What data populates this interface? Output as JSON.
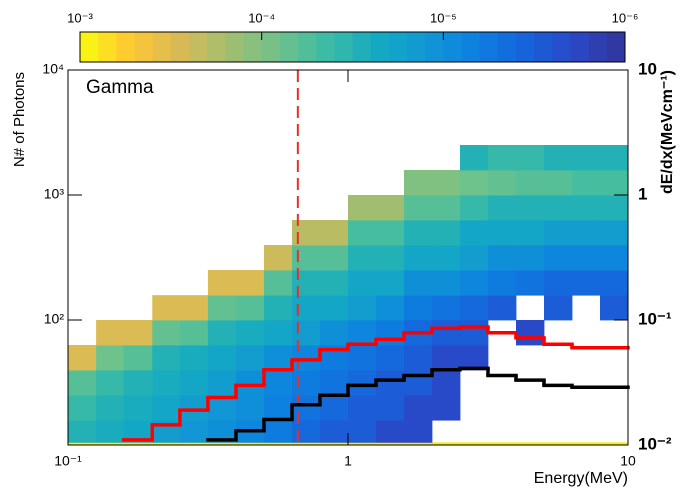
{
  "chart_data": {
    "type": "heatmap",
    "annotation": "Gamma",
    "x_label": "Energy(MeV)",
    "y_label": "N# of Photons",
    "y2_label": "dE/dx(MeVcm⁻¹)",
    "log_x": true,
    "log_y": true,
    "log_y2": true,
    "log_z": true,
    "xlim": [
      0.1,
      10
    ],
    "xticks": [
      {
        "value": 0.1,
        "label": "10⁻¹"
      },
      1,
      10
    ],
    "ylim": [
      10,
      10000
    ],
    "yticks": [
      {
        "value": 10000,
        "label": "10⁴"
      },
      {
        "value": 1000,
        "label": "10³"
      },
      {
        "value": 100,
        "label": "10²"
      }
    ],
    "y2lim": [
      0.01,
      10
    ],
    "y2ticks": [
      10,
      1,
      {
        "value": 0.1,
        "label": "10⁻¹"
      },
      {
        "value": 0.01,
        "label": "10⁻²"
      }
    ],
    "zlim": [
      0.001,
      1e-06
    ],
    "zticks": [
      {
        "value": 0.001,
        "label": "10⁻³"
      },
      {
        "value": 0.0001,
        "label": "10⁻⁴"
      },
      {
        "value": 1e-05,
        "label": "10⁻⁵"
      },
      {
        "value": 1e-06,
        "label": "10⁻⁶"
      }
    ],
    "palette": [
      "#f9fb0e",
      "#fec832",
      "#d8ba56",
      "#a2be6f",
      "#6fc28b",
      "#3bbba5",
      "#14aac2",
      "#1297d5",
      "#0d7fe0",
      "#1763db",
      "#2b47c6",
      "#33359a"
    ],
    "x_bins": [
      0.1,
      0.126,
      0.158,
      0.2,
      0.251,
      0.316,
      0.398,
      0.501,
      0.631,
      0.794,
      1,
      1.259,
      1.585,
      1.995,
      2.512,
      3.162,
      3.981,
      5.012,
      6.31,
      7.943,
      10
    ],
    "y_bins": [
      10,
      10.5,
      15.8,
      25.1,
      39.8,
      63.1,
      100,
      158,
      251,
      398,
      631,
      1000,
      1585,
      2512,
      3981,
      6310,
      10000
    ],
    "z": [
      [
        0.0008,
        0.0008,
        0.0008,
        0.0008,
        0.0008,
        0.0008,
        0.0008,
        0.0008,
        0.0008,
        0.0008,
        0.0008,
        0.0008,
        0.0008,
        0.0008,
        0.0008,
        0.0008,
        0.0008,
        0.0008,
        0.0008,
        0.0008
      ],
      [
        3e-05,
        2.5e-05,
        2e-05,
        1.5e-05,
        1.2e-05,
        1e-05,
        8e-06,
        6e-06,
        4e-06,
        3e-06,
        3e-06,
        2e-06,
        2e-06,
        null,
        null,
        null,
        null,
        null,
        null,
        null
      ],
      [
        4e-05,
        3e-05,
        2.5e-05,
        2e-05,
        1.5e-05,
        1.2e-05,
        1e-05,
        7e-06,
        5e-06,
        4e-06,
        3e-06,
        3e-06,
        2e-06,
        2e-06,
        null,
        null,
        null,
        null,
        null,
        null
      ],
      [
        6e-05,
        4e-05,
        3e-05,
        2.5e-05,
        2e-05,
        1.5e-05,
        1e-05,
        8e-06,
        6e-06,
        5e-06,
        4e-06,
        3e-06,
        3e-06,
        2e-06,
        null,
        null,
        null,
        null,
        null,
        null
      ],
      [
        0.0003,
        8e-05,
        6e-05,
        3e-05,
        2.5e-05,
        2e-05,
        1.5e-05,
        1e-05,
        8e-06,
        6e-06,
        5e-06,
        4e-06,
        3e-06,
        2e-06,
        2e-06,
        null,
        null,
        null,
        null,
        null
      ],
      [
        null,
        0.0003,
        0.0003,
        7e-05,
        6e-05,
        3e-05,
        2.5e-05,
        2e-05,
        1.5e-05,
        1e-05,
        8e-06,
        6e-06,
        4e-06,
        3e-06,
        3e-06,
        null,
        2e-06,
        null,
        null,
        null
      ],
      [
        null,
        null,
        null,
        0.0003,
        0.0003,
        7e-05,
        6e-05,
        3e-05,
        2e-05,
        2e-05,
        1.5e-05,
        1e-05,
        6e-06,
        5e-06,
        4e-06,
        3e-06,
        null,
        3e-06,
        null,
        3e-06
      ],
      [
        null,
        null,
        null,
        null,
        null,
        0.0003,
        0.0003,
        6e-05,
        3e-05,
        3e-05,
        2e-05,
        2e-05,
        1e-05,
        1e-05,
        8e-06,
        6e-06,
        5e-06,
        4e-06,
        4e-06,
        4e-06
      ],
      [
        null,
        null,
        null,
        null,
        null,
        null,
        null,
        0.00025,
        6e-05,
        6e-05,
        3e-05,
        3e-05,
        2e-05,
        2e-05,
        1.5e-05,
        1e-05,
        1e-05,
        8e-06,
        8e-06,
        8e-06
      ],
      [
        null,
        null,
        null,
        null,
        null,
        null,
        null,
        null,
        0.0002,
        0.0002,
        5e-05,
        5e-05,
        3e-05,
        3e-05,
        2e-05,
        2e-05,
        2e-05,
        1.5e-05,
        1.5e-05,
        1.5e-05
      ],
      [
        null,
        null,
        null,
        null,
        null,
        null,
        null,
        null,
        null,
        null,
        0.00015,
        0.00015,
        6e-05,
        6e-05,
        4e-05,
        3e-05,
        3e-05,
        3e-05,
        3e-05,
        3e-05
      ],
      [
        null,
        null,
        null,
        null,
        null,
        null,
        null,
        null,
        null,
        null,
        null,
        null,
        0.0001,
        0.0001,
        8e-05,
        7e-05,
        6e-05,
        6e-05,
        5e-05,
        5e-05
      ],
      [
        null,
        null,
        null,
        null,
        null,
        null,
        null,
        null,
        null,
        null,
        null,
        null,
        null,
        null,
        3e-05,
        4e-05,
        4e-05,
        3e-05,
        3e-05,
        3e-05
      ],
      [
        null,
        null,
        null,
        null,
        null,
        null,
        null,
        null,
        null,
        null,
        null,
        null,
        null,
        null,
        null,
        null,
        null,
        null,
        null,
        null
      ],
      [
        null,
        null,
        null,
        null,
        null,
        null,
        null,
        null,
        null,
        null,
        null,
        null,
        null,
        null,
        null,
        null,
        null,
        null,
        null,
        null
      ],
      [
        null,
        null,
        null,
        null,
        null,
        null,
        null,
        null,
        null,
        null,
        null,
        null,
        null,
        null,
        null,
        null,
        null,
        null,
        null,
        null
      ]
    ],
    "vline": {
      "x": 0.662,
      "color": "#e8302a"
    },
    "series": [
      {
        "color": "#ff0000",
        "axis": "y2",
        "bins": [
          0.158,
          0.2,
          0.251,
          0.316,
          0.398,
          0.501,
          0.631,
          0.794,
          1,
          1.259,
          1.585,
          1.995,
          2.512,
          3.162,
          3.981,
          5.012,
          6.31,
          7.943,
          10
        ],
        "values": [
          0.011,
          0.0145,
          0.019,
          0.024,
          0.03,
          0.04,
          0.048,
          0.058,
          0.064,
          0.07,
          0.079,
          0.086,
          0.088,
          0.079,
          0.072,
          0.064,
          0.06,
          0.06
        ]
      },
      {
        "color": "#000000",
        "axis": "y2",
        "bins": [
          0.158,
          0.2,
          0.251,
          0.316,
          0.398,
          0.501,
          0.631,
          0.794,
          1,
          1.259,
          1.585,
          1.995,
          2.512,
          3.162,
          3.981,
          5.012,
          6.31,
          7.943,
          10
        ],
        "values": [
          null,
          null,
          null,
          0.011,
          0.013,
          0.016,
          0.021,
          0.025,
          0.03,
          0.033,
          0.036,
          0.04,
          0.041,
          0.036,
          0.033,
          0.03,
          0.029,
          0.029
        ]
      }
    ]
  }
}
